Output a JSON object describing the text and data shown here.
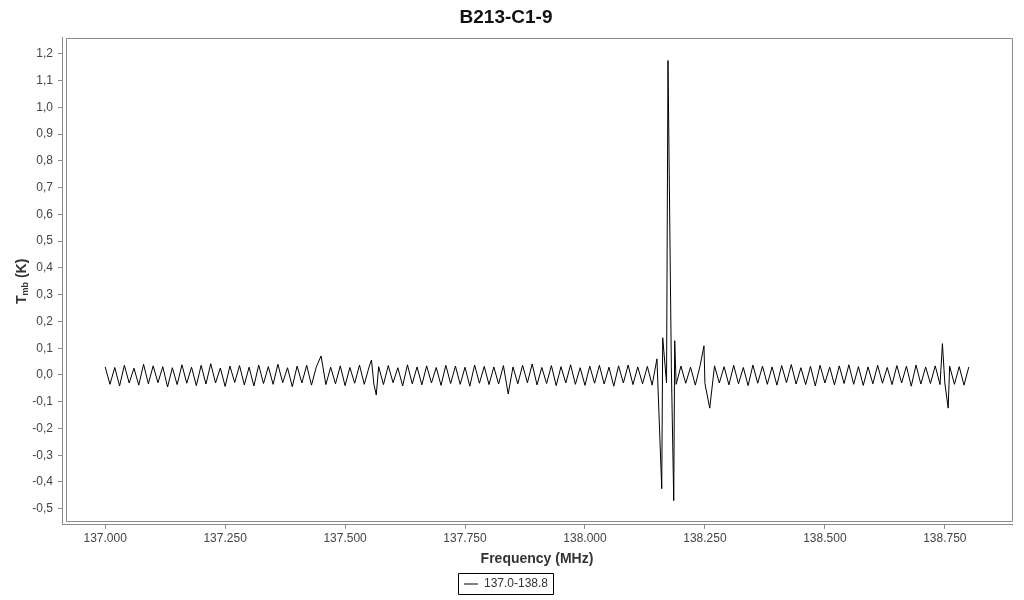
{
  "chart_data": {
    "type": "line",
    "title": "B213-C1-9",
    "xlabel": "Frequency (MHz)",
    "ylabel": "T$_{mb}$ (K)",
    "legend": "bottom",
    "xlim": [
      136910,
      138890
    ],
    "ylim": [
      -0.56,
      1.26
    ],
    "xticks": [
      {
        "value": 137000,
        "label": "137.000"
      },
      {
        "value": 137250,
        "label": "137.250"
      },
      {
        "value": 137500,
        "label": "137.500"
      },
      {
        "value": 137750,
        "label": "137.750"
      },
      {
        "value": 138000,
        "label": "138.000"
      },
      {
        "value": 138250,
        "label": "138.250"
      },
      {
        "value": 138500,
        "label": "138.500"
      },
      {
        "value": 138750,
        "label": "138.750"
      }
    ],
    "yticks": [
      {
        "value": -0.5,
        "label": "-0,5"
      },
      {
        "value": -0.4,
        "label": "-0,4"
      },
      {
        "value": -0.3,
        "label": "-0,3"
      },
      {
        "value": -0.2,
        "label": "-0,2"
      },
      {
        "value": -0.1,
        "label": "-0,1"
      },
      {
        "value": 0,
        "label": "0,0"
      },
      {
        "value": 0.1,
        "label": "0,1"
      },
      {
        "value": 0.2,
        "label": "0,2"
      },
      {
        "value": 0.3,
        "label": "0,3"
      },
      {
        "value": 0.4,
        "label": "0,4"
      },
      {
        "value": 0.5,
        "label": "0,5"
      },
      {
        "value": 0.6,
        "label": "0,6"
      },
      {
        "value": 0.7,
        "label": "0,7"
      },
      {
        "value": 0.8,
        "label": "0,8"
      },
      {
        "value": 0.9,
        "label": "0,9"
      },
      {
        "value": 1,
        "label": "1,0"
      },
      {
        "value": 1.1,
        "label": "1,1"
      },
      {
        "value": 1.2,
        "label": "1,2"
      }
    ],
    "x": [
      137000,
      137010,
      137020,
      137030,
      137040,
      137050,
      137060,
      137070,
      137080,
      137090,
      137100,
      137110,
      137120,
      137130,
      137140,
      137150,
      137160,
      137170,
      137180,
      137190,
      137200,
      137210,
      137220,
      137230,
      137240,
      137250,
      137260,
      137270,
      137280,
      137290,
      137300,
      137310,
      137320,
      137330,
      137340,
      137350,
      137360,
      137370,
      137380,
      137390,
      137400,
      137410,
      137420,
      137430,
      137440,
      137450,
      137460,
      137470,
      137480,
      137490,
      137500,
      137510,
      137520,
      137530,
      137540,
      137550,
      137555,
      137560,
      137565,
      137570,
      137580,
      137590,
      137600,
      137610,
      137620,
      137630,
      137640,
      137650,
      137660,
      137670,
      137680,
      137690,
      137700,
      137710,
      137720,
      137730,
      137740,
      137750,
      137760,
      137770,
      137780,
      137790,
      137800,
      137810,
      137820,
      137830,
      137840,
      137850,
      137860,
      137870,
      137880,
      137890,
      137900,
      137910,
      137920,
      137930,
      137940,
      137950,
      137960,
      137970,
      137980,
      137990,
      138000,
      138010,
      138020,
      138030,
      138040,
      138050,
      138060,
      138070,
      138080,
      138090,
      138100,
      138110,
      138120,
      138130,
      138140,
      138150,
      138160,
      138162,
      138170,
      138173,
      138180,
      138185,
      138187,
      138190,
      138200,
      138210,
      138220,
      138230,
      138240,
      138248,
      138250,
      138260,
      138270,
      138280,
      138290,
      138300,
      138310,
      138320,
      138330,
      138340,
      138350,
      138360,
      138370,
      138380,
      138390,
      138400,
      138410,
      138420,
      138430,
      138440,
      138450,
      138460,
      138470,
      138480,
      138490,
      138500,
      138510,
      138520,
      138530,
      138540,
      138550,
      138560,
      138570,
      138580,
      138590,
      138600,
      138610,
      138620,
      138630,
      138640,
      138650,
      138660,
      138670,
      138680,
      138690,
      138700,
      138710,
      138720,
      138730,
      138740,
      138745,
      138750,
      138757,
      138760,
      138770,
      138780,
      138790,
      138800
    ],
    "series": [
      {
        "name": "137.0-138.8",
        "color": "#000000",
        "values": [
          0.03,
          -0.035,
          0.028,
          -0.041,
          0.036,
          -0.03,
          0.025,
          -0.038,
          0.04,
          -0.033,
          0.034,
          -0.029,
          0.031,
          -0.045,
          0.027,
          -0.036,
          0.038,
          -0.031,
          0.029,
          -0.04,
          0.036,
          -0.034,
          0.042,
          -0.03,
          0.026,
          -0.043,
          0.033,
          -0.028,
          0.035,
          -0.037,
          0.029,
          -0.041,
          0.037,
          -0.032,
          0.031,
          -0.035,
          0.04,
          -0.029,
          0.027,
          -0.044,
          0.033,
          -0.03,
          0.036,
          -0.038,
          0.03,
          0.071,
          -0.036,
          0.029,
          -0.033,
          0.034,
          -0.04,
          0.028,
          -0.031,
          0.037,
          -0.035,
          0.03,
          0.056,
          -0.034,
          -0.075,
          0.031,
          -0.036,
          0.035,
          -0.029,
          0.027,
          -0.041,
          0.038,
          -0.033,
          0.03,
          -0.037,
          0.034,
          -0.03,
          0.028,
          -0.039,
          0.036,
          -0.032,
          0.033,
          -0.035,
          0.029,
          -0.042,
          0.037,
          -0.031,
          0.032,
          -0.036,
          0.03,
          -0.034,
          0.035,
          -0.071,
          0.03,
          -0.033,
          0.036,
          -0.029,
          0.041,
          -0.037,
          0.028,
          -0.032,
          0.035,
          -0.04,
          0.031,
          -0.03,
          0.038,
          -0.035,
          0.027,
          -0.039,
          0.033,
          -0.031,
          0.036,
          -0.034,
          0.029,
          -0.042,
          0.034,
          -0.03,
          0.037,
          -0.036,
          0.03,
          -0.033,
          0.032,
          -0.038,
          0.06,
          -0.425,
          0.139,
          -0.03,
          1.175,
          0.032,
          -0.47,
          0.128,
          -0.035,
          0.033,
          -0.031,
          0.029,
          -0.038,
          0.035,
          0.109,
          -0.032,
          -0.124,
          0.034,
          -0.03,
          0.031,
          -0.037,
          0.036,
          -0.033,
          0.028,
          -0.04,
          0.037,
          -0.031,
          0.033,
          -0.035,
          0.03,
          -0.038,
          0.035,
          -0.029,
          0.039,
          -0.034,
          0.027,
          -0.036,
          0.032,
          -0.041,
          0.036,
          -0.03,
          0.029,
          -0.037,
          0.034,
          -0.032,
          0.038,
          -0.035,
          0.031,
          -0.039,
          0.03,
          -0.033,
          0.036,
          -0.031,
          0.028,
          -0.036,
          0.035,
          -0.03,
          0.033,
          -0.042,
          0.037,
          -0.034,
          0.03,
          -0.032,
          0.034,
          -0.036,
          0.117,
          -0.03,
          -0.124,
          0.033,
          -0.035,
          0.031,
          -0.038,
          0.03
        ]
      }
    ]
  }
}
